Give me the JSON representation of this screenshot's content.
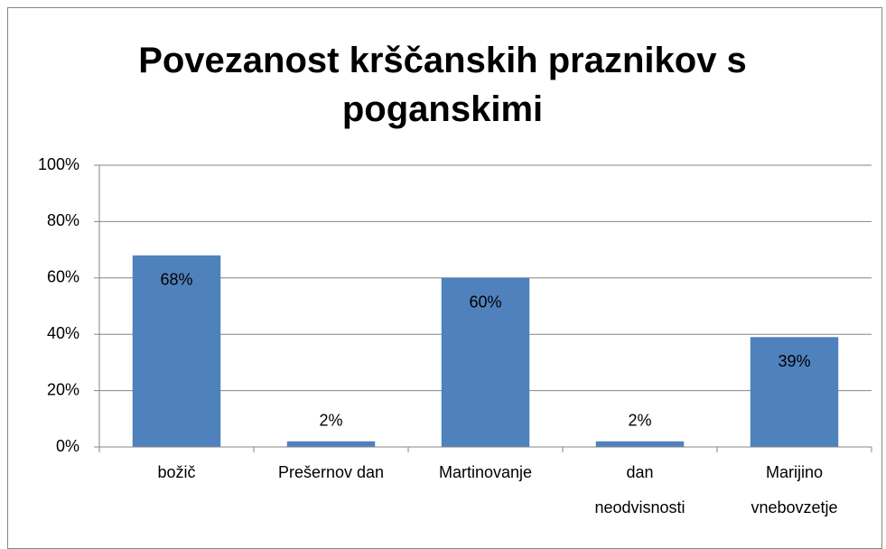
{
  "chart_data": {
    "type": "bar",
    "title": "Povezanost krščanskih praznikov s poganskimi",
    "categories": [
      "božič",
      "Prešernov dan",
      "Martinovanje",
      "dan neodvisnosti",
      "Marijino vnebovzetje"
    ],
    "values": [
      68,
      2,
      60,
      2,
      39
    ],
    "value_labels": [
      "68%",
      "2%",
      "60%",
      "2%",
      "39%"
    ],
    "color": "#4f81bd",
    "ylim": [
      0,
      100
    ],
    "yticks": [
      {
        "value": 0,
        "label": "0%"
      },
      {
        "value": 20,
        "label": "20%"
      },
      {
        "value": 40,
        "label": "40%"
      },
      {
        "value": 60,
        "label": "60%"
      },
      {
        "value": 80,
        "label": "80%"
      },
      {
        "value": 100,
        "label": "100%"
      }
    ],
    "grid": true
  }
}
